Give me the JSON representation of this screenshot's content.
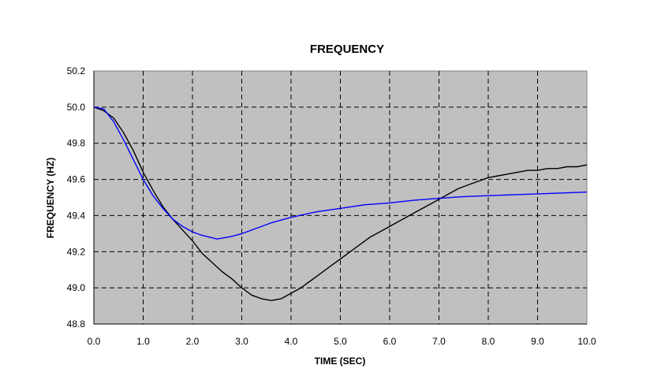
{
  "chart_data": {
    "type": "line",
    "title": "FREQUENCY",
    "xlabel": "TIME (SEC)",
    "ylabel": "FREQUENCY (HZ)",
    "xlim": [
      0,
      10
    ],
    "ylim": [
      48.8,
      50.2
    ],
    "x_ticks": [
      "0.0",
      "1.0",
      "2.0",
      "3.0",
      "4.0",
      "5.0",
      "6.0",
      "7.0",
      "8.0",
      "9.0",
      "10.0"
    ],
    "y_ticks": [
      "48.8",
      "49.0",
      "49.2",
      "49.4",
      "49.6",
      "49.8",
      "50.0",
      "50.2"
    ],
    "grid": true,
    "plot_background": "#c0c0c0",
    "series": [
      {
        "color": "#000000",
        "x": [
          0,
          0.2,
          0.4,
          0.6,
          0.8,
          1.0,
          1.2,
          1.4,
          1.6,
          1.8,
          2.0,
          2.2,
          2.4,
          2.6,
          2.8,
          3.0,
          3.2,
          3.4,
          3.6,
          3.8,
          4.0,
          4.2,
          4.4,
          4.6,
          4.8,
          5.0,
          5.2,
          5.4,
          5.6,
          5.8,
          6.0,
          6.2,
          6.4,
          6.6,
          6.8,
          7.0,
          7.2,
          7.4,
          7.6,
          7.8,
          8.0,
          8.2,
          8.4,
          8.6,
          8.8,
          9.0,
          9.2,
          9.4,
          9.6,
          9.8,
          10.0
        ],
        "y": [
          50.0,
          49.98,
          49.94,
          49.86,
          49.76,
          49.64,
          49.54,
          49.45,
          49.38,
          49.32,
          49.26,
          49.19,
          49.14,
          49.09,
          49.05,
          49.0,
          48.96,
          48.94,
          48.93,
          48.94,
          48.97,
          49.0,
          49.04,
          49.08,
          49.12,
          49.16,
          49.2,
          49.24,
          49.28,
          49.31,
          49.34,
          49.37,
          49.4,
          49.43,
          49.46,
          49.49,
          49.52,
          49.55,
          49.57,
          49.59,
          49.61,
          49.62,
          49.63,
          49.64,
          49.65,
          49.65,
          49.66,
          49.66,
          49.67,
          49.67,
          49.68
        ]
      },
      {
        "color": "#0000ff",
        "x": [
          0,
          0.2,
          0.4,
          0.6,
          0.8,
          1.0,
          1.2,
          1.4,
          1.6,
          1.8,
          2.0,
          2.2,
          2.5,
          2.8,
          3.0,
          3.3,
          3.6,
          4.0,
          4.5,
          5.0,
          5.5,
          6.0,
          6.5,
          7.0,
          7.5,
          8.0,
          8.5,
          9.0,
          9.5,
          10.0
        ],
        "y": [
          50.0,
          49.99,
          49.92,
          49.82,
          49.71,
          49.6,
          49.51,
          49.44,
          49.38,
          49.34,
          49.31,
          49.29,
          49.27,
          49.285,
          49.3,
          49.33,
          49.36,
          49.39,
          49.42,
          49.44,
          49.46,
          49.47,
          49.485,
          49.495,
          49.505,
          49.51,
          49.515,
          49.52,
          49.525,
          49.53
        ]
      }
    ]
  }
}
